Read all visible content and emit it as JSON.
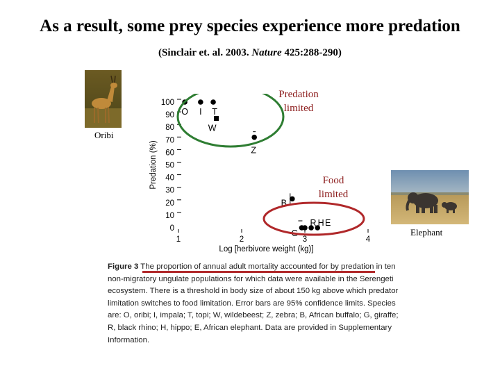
{
  "slide": {
    "title": "As a result, some prey species experience more predation",
    "citation_prefix": "(Sinclair et. al. 2003.",
    "citation_journal": "Nature",
    "citation_suffix": "425:288-290)"
  },
  "photos": {
    "oribi_label": "Oribi",
    "elephant_label": "Elephant"
  },
  "annotations": {
    "predation_line1": "Predation",
    "predation_line2": "limited",
    "food_line1": "Food",
    "food_line2": "limited"
  },
  "colors": {
    "predation_circle": "#2e7d32",
    "food_circle": "#b0282a",
    "annotation_text": "#8b1a1a"
  },
  "chart_data": {
    "type": "scatter",
    "xlabel": "Log [herbivore weight (kg)]",
    "ylabel": "Predation (%)",
    "xlim": [
      1,
      4
    ],
    "ylim": [
      0,
      100
    ],
    "x_ticks": [
      "1",
      "2",
      "3",
      "4"
    ],
    "y_ticks": [
      "0",
      "10",
      "20",
      "30",
      "40",
      "50",
      "60",
      "70",
      "80",
      "90",
      "100"
    ],
    "points": [
      {
        "label": "O",
        "x": 1.1,
        "y": 100
      },
      {
        "label": "I",
        "x": 1.35,
        "y": 100
      },
      {
        "label": "T",
        "x": 1.55,
        "y": 100
      },
      {
        "label": "W",
        "x": 1.6,
        "y": 87
      },
      {
        "label": "Z",
        "x": 2.2,
        "y": 72
      },
      {
        "label": "B",
        "x": 2.8,
        "y": 23
      },
      {
        "label": "G",
        "x": 2.95,
        "y": 0
      },
      {
        "label": "R",
        "x": 3.0,
        "y": 0
      },
      {
        "label": "H",
        "x": 3.1,
        "y": 0
      },
      {
        "label": "E",
        "x": 3.2,
        "y": 0
      }
    ]
  },
  "caption": {
    "figure_label": "Figure 3",
    "text": "The proportion of annual adult mortality accounted for by predation in ten non-migratory ungulate populations for which data were available in the Serengeti ecosystem. There is a threshold in body size of about 150 kg above which predator limitation switches to food limitation. Error bars are 95% confidence limits. Species are: O, oribi; I, impala; T, topi; W, wildebeest; Z, zebra; B, African buffalo; G, giraffe; R, black rhino; H, hippo; E, African elephant. Data are provided in Supplementary Information."
  }
}
